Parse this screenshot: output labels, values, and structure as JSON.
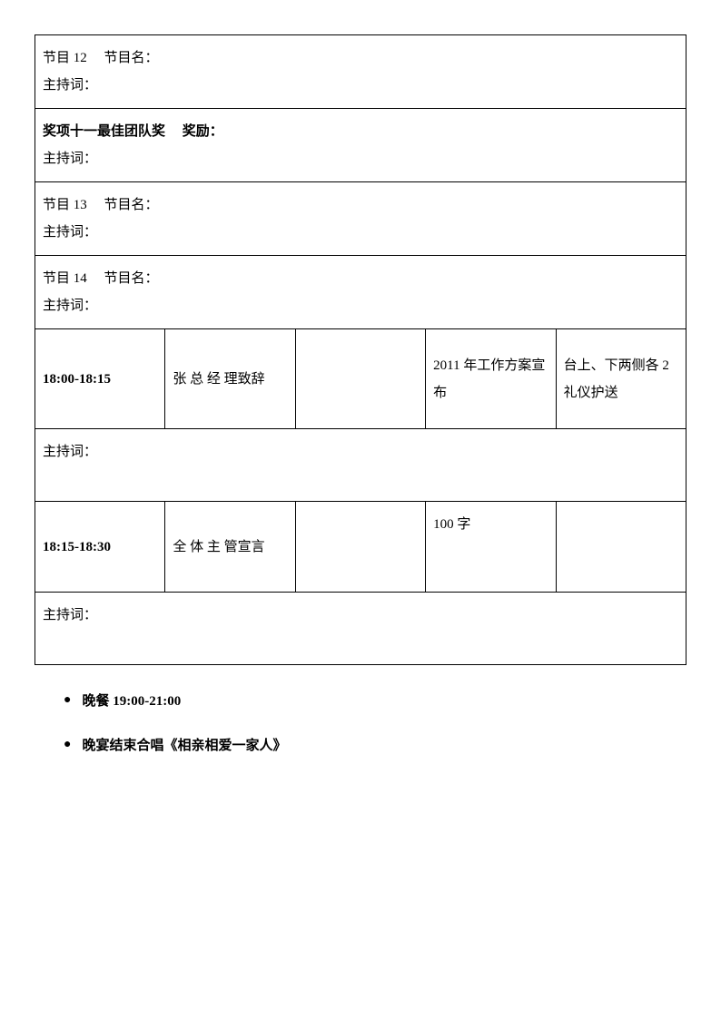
{
  "table": {
    "rows": [
      {
        "type": "full",
        "text": "节目 12　 节目名：\n主持词：",
        "bold": false
      },
      {
        "type": "full",
        "text_bold": "奖项十一最佳团队奖　 奖励：",
        "text_plain": "主持词：",
        "bold": true
      },
      {
        "type": "full",
        "text": "节目 13　 节目名：\n主持词：",
        "bold": false
      },
      {
        "type": "full",
        "text": "节目 14　 节目名：\n主持词：",
        "bold": false
      },
      {
        "type": "schedule",
        "time": "18:00-18:15",
        "person": "张 总 经 理致辞",
        "blank": "",
        "content": "2011 年工作方案宣布",
        "note": "台上、下两侧各 2 礼仪护送"
      },
      {
        "type": "host",
        "text": "主持词："
      },
      {
        "type": "schedule2",
        "time": "18:15-18:30",
        "person": "全 体 主 管宣言",
        "blank": "",
        "content": "100 字",
        "note": ""
      },
      {
        "type": "host",
        "text": "主持词："
      }
    ]
  },
  "bullets": [
    "晚餐 19:00-21:00",
    "晚宴结束合唱《相亲相爱一家人》"
  ]
}
